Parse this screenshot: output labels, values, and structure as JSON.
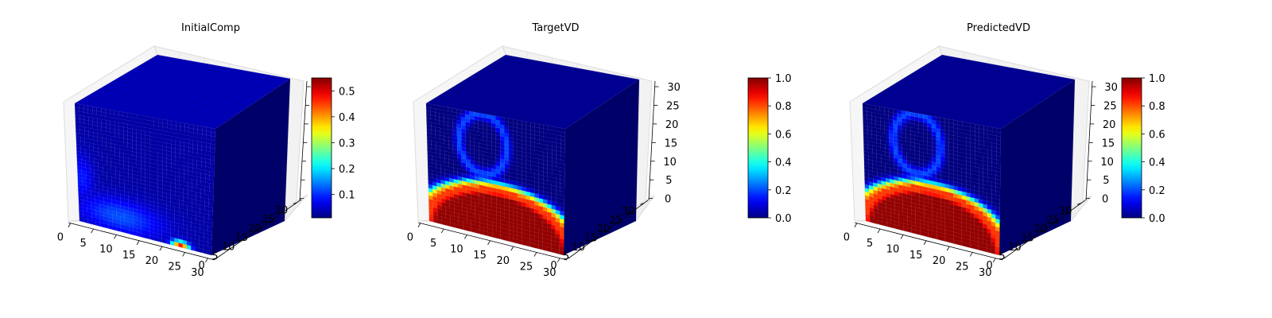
{
  "chart_data": [
    {
      "type": "heatmap",
      "title": "InitialComp",
      "xlabel": "",
      "ylabel": "",
      "zlabel": "",
      "x_ticks": [
        "0",
        "5",
        "10",
        "15",
        "20",
        "25",
        "30"
      ],
      "y_ticks": [
        "0",
        "5",
        "10",
        "15",
        "20",
        "25",
        "30"
      ],
      "z_ticks": [],
      "xlim": [
        0,
        32
      ],
      "ylim": [
        0,
        32
      ],
      "zlim": [
        0,
        32
      ],
      "colormap": "jet",
      "colorbar": {
        "range": [
          0.01,
          0.55
        ],
        "ticks": [
          "0.1",
          "0.2",
          "0.3",
          "0.4",
          "0.5"
        ],
        "tick_values": [
          0.1,
          0.2,
          0.3,
          0.4,
          0.5
        ]
      },
      "features": [
        {
          "face": "front",
          "kind": "blob",
          "cx": 10,
          "cz": 4,
          "rx": 11,
          "rz": 5,
          "value": 0.12
        },
        {
          "face": "front",
          "kind": "blob",
          "cx": 1,
          "cz": 12,
          "rx": 3,
          "rz": 7,
          "value": 0.09
        },
        {
          "face": "front",
          "kind": "blob",
          "cx": 24.5,
          "cz": 0.3,
          "rx": 2.3,
          "rz": 1.4,
          "value": 0.48
        }
      ]
    },
    {
      "type": "heatmap",
      "title": "TargetVD",
      "xlabel": "",
      "ylabel": "",
      "zlabel": "",
      "x_ticks": [
        "0",
        "5",
        "10",
        "15",
        "20",
        "25",
        "30"
      ],
      "y_ticks": [
        "0",
        "5",
        "10",
        "15",
        "20",
        "25",
        "30"
      ],
      "z_ticks": [
        "0",
        "5",
        "10",
        "15",
        "20",
        "25",
        "30"
      ],
      "xlim": [
        0,
        32
      ],
      "ylim": [
        0,
        32
      ],
      "zlim": [
        0,
        32
      ],
      "colormap": "jet",
      "colorbar": {
        "range": [
          0.0,
          1.0
        ],
        "ticks": [
          "0.0",
          "0.2",
          "0.4",
          "0.6",
          "0.8",
          "1.0"
        ],
        "tick_values": [
          0,
          0.2,
          0.4,
          0.6,
          0.8,
          1.0
        ]
      },
      "features": [
        {
          "face": "front",
          "kind": "ring",
          "cx": 16.5,
          "cz": 0,
          "rx": 18,
          "rz": 13,
          "width": 2.2,
          "value": 1.0
        },
        {
          "face": "front",
          "kind": "ring",
          "cx": 13,
          "cz": 24,
          "rx": 5.5,
          "rz": 8,
          "width": 1.4,
          "value": 0.2
        }
      ]
    },
    {
      "type": "heatmap",
      "title": "PredictedVD",
      "xlabel": "",
      "ylabel": "",
      "zlabel": "",
      "x_ticks": [
        "0",
        "5",
        "10",
        "15",
        "20",
        "25",
        "30"
      ],
      "y_ticks": [
        "0",
        "5",
        "10",
        "15",
        "20",
        "25",
        "30"
      ],
      "z_ticks": [
        "0",
        "5",
        "10",
        "15",
        "20",
        "25",
        "30"
      ],
      "xlim": [
        0,
        32
      ],
      "ylim": [
        0,
        32
      ],
      "zlim": [
        0,
        32
      ],
      "colormap": "jet",
      "colorbar": {
        "range": [
          0.0,
          1.0
        ],
        "ticks": [
          "0.0",
          "0.2",
          "0.4",
          "0.6",
          "0.8",
          "1.0"
        ],
        "tick_values": [
          0,
          0.2,
          0.4,
          0.6,
          0.8,
          1.0
        ]
      },
      "features": [
        {
          "face": "front",
          "kind": "ring",
          "cx": 16,
          "cz": 0,
          "rx": 17.5,
          "rz": 13,
          "width": 2.2,
          "value": 1.0
        },
        {
          "face": "front",
          "kind": "ring",
          "cx": 12.5,
          "cz": 24,
          "rx": 5.5,
          "rz": 8,
          "width": 1.4,
          "value": 0.2
        }
      ]
    }
  ]
}
